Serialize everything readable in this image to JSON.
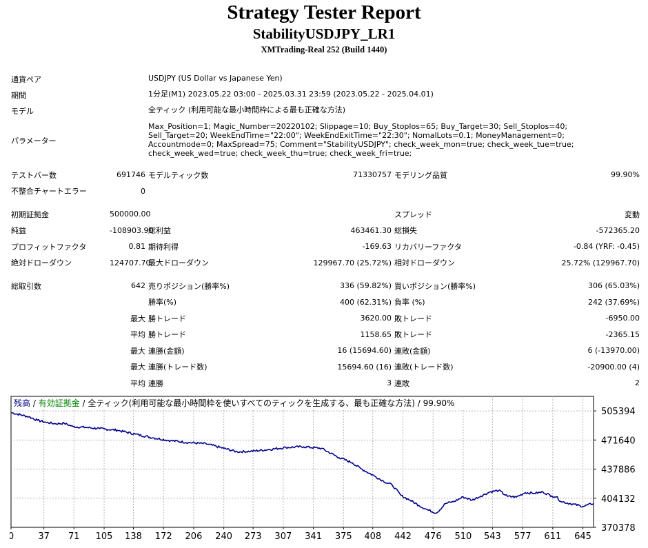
{
  "header": {
    "title": "Strategy Tester Report",
    "subtitle": "StabilityUSDJPY_LR1",
    "build": "XMTrading-Real 252 (Build 1440)"
  },
  "info": [
    {
      "label": "通貨ペア",
      "value": "USDJPY (US Dollar vs Japanese Yen)"
    },
    {
      "label": "期間",
      "value": "1分足(M1) 2023.05.22 03:00 - 2025.03.31 23:59 (2023.05.22 - 2025.04.01)"
    },
    {
      "label": "モデル",
      "value": "全ティック (利用可能な最小時間枠による最も正確な方法)"
    },
    {
      "label": "パラメーター",
      "value": "Max_Position=1; Magic_Number=20220102; Slippage=10; Buy_Stoplos=65; Buy_Target=30; Sell_Stoplos=40; Sell_Target=20; WeekEndTime=\"22:00\"; WeekEndExitTime=\"22:30\"; NomalLots=0.1; MoneyManagement=0; Accountmode=0; MaxSpread=75; Comment=\"StabilityUSDJPY\"; check_week_mon=true; check_week_tue=true; check_week_wed=true; check_week_thu=true; check_week_fri=true;"
    }
  ],
  "stats": {
    "test_bars_label": "テストバー数",
    "test_bars": "691746",
    "model_ticks_label": "モデルティック数",
    "model_ticks": "71330757",
    "modeling_quality_label": "モデリング品質",
    "modeling_quality": "99.90%",
    "mismatch_label": "不整合チャートエラー",
    "mismatch": "0",
    "initial_deposit_label": "初期証拠金",
    "initial_deposit": "500000.00",
    "spread_label": "スプレッド",
    "spread": "変動",
    "net_profit_label": "純益",
    "net_profit": "-108903.90",
    "gross_profit_label": "総利益",
    "gross_profit": "463461.30",
    "gross_loss_label": "総損失",
    "gross_loss": "-572365.20",
    "profit_factor_label": "プロフィットファクタ",
    "profit_factor": "0.81",
    "expected_payoff_label": "期待利得",
    "expected_payoff": "-169.63",
    "recovery_factor_label": "リカバリーファクタ",
    "recovery_factor": "-0.84 (YRF: -0.45)",
    "abs_dd_label": "絶対ドローダウン",
    "abs_dd": "124707.70",
    "max_dd_label": "最大ドローダウン",
    "max_dd": "129967.70 (25.72%)",
    "rel_dd_label": "相対ドローダウン",
    "rel_dd": "25.72% (129967.70)",
    "total_trades_label": "総取引数",
    "total_trades": "642",
    "short_pos_label": "売りポジション(勝率%)",
    "short_pos": "336 (59.82%)",
    "long_pos_label": "買いポジション(勝率%)",
    "long_pos": "306 (65.03%)",
    "win_rate_label": "勝率(%)",
    "win_rate": "400 (62.31%)",
    "loss_rate_label": "負率 (%)",
    "loss_rate": "242 (37.69%)",
    "largest": "最大",
    "average": "平均",
    "win_trade_label": "勝トレード",
    "loss_trade_label": "敗トレード",
    "largest_win": "3620.00",
    "largest_loss": "-6950.00",
    "avg_win": "1158.65",
    "avg_loss": "-2365.15",
    "consec_wins_amt_label": "連勝(金額)",
    "consec_wins_amt": "16 (15694.60)",
    "consec_losses_amt_label": "連敗(金額)",
    "consec_losses_amt": "6 (-13970.00)",
    "consec_profit_label": "連勝(トレード数)",
    "consec_profit": "15694.60 (16)",
    "consec_loss_label": "連敗(トレード数)",
    "consec_loss": "-20900.00 (4)",
    "avg_consec_wins_label": "連勝",
    "avg_consec_wins": "3",
    "avg_consec_losses_label": "連敗",
    "avg_consec_losses": "2"
  },
  "chart_data": {
    "type": "line",
    "legend": {
      "balance": "残高",
      "sep1": " / ",
      "equity": "有効証拠金",
      "sep2": " / ",
      "desc": "全ティック(利用可能な最小時間枠を使いすべてのティックを生成する、最も正確な方法) / 99.90%"
    },
    "x_ticks": [
      "0",
      "37",
      "71",
      "105",
      "138",
      "172",
      "206",
      "240",
      "273",
      "307",
      "341",
      "375",
      "408",
      "442",
      "476",
      "510",
      "543",
      "577",
      "611",
      "645"
    ],
    "y_ticks": [
      "505394",
      "471640",
      "437886",
      "404132",
      "370378"
    ],
    "xlim": [
      0,
      657
    ],
    "ylim": [
      370378,
      522271
    ],
    "series": [
      {
        "name": "残高",
        "x": [
          0,
          20,
          30,
          40,
          50,
          60,
          70,
          85,
          100,
          120,
          140,
          160,
          180,
          200,
          220,
          240,
          255,
          270,
          290,
          310,
          330,
          350,
          370,
          385,
          395,
          410,
          420,
          430,
          440,
          450,
          460,
          470,
          480,
          490,
          500,
          510,
          520,
          530,
          540,
          550,
          560,
          570,
          580,
          590,
          600,
          610,
          615,
          620,
          630,
          645,
          657
        ],
        "y": [
          503500,
          498600,
          494500,
          492000,
          490500,
          491000,
          487200,
          486200,
          484800,
          483000,
          478500,
          474200,
          470900,
          468700,
          467200,
          462000,
          458000,
          458500,
          460500,
          463000,
          463800,
          462000,
          451200,
          445200,
          438200,
          429900,
          423900,
          419400,
          407200,
          401900,
          395800,
          390500,
          387000,
          398000,
          400500,
          405600,
          401900,
          406700,
          411400,
          413200,
          406300,
          405500,
          410700,
          409800,
          411200,
          406800,
          405700,
          400500,
          398000,
          394700,
          398100
        ],
        "color": "#00008b"
      }
    ],
    "grid": true
  }
}
